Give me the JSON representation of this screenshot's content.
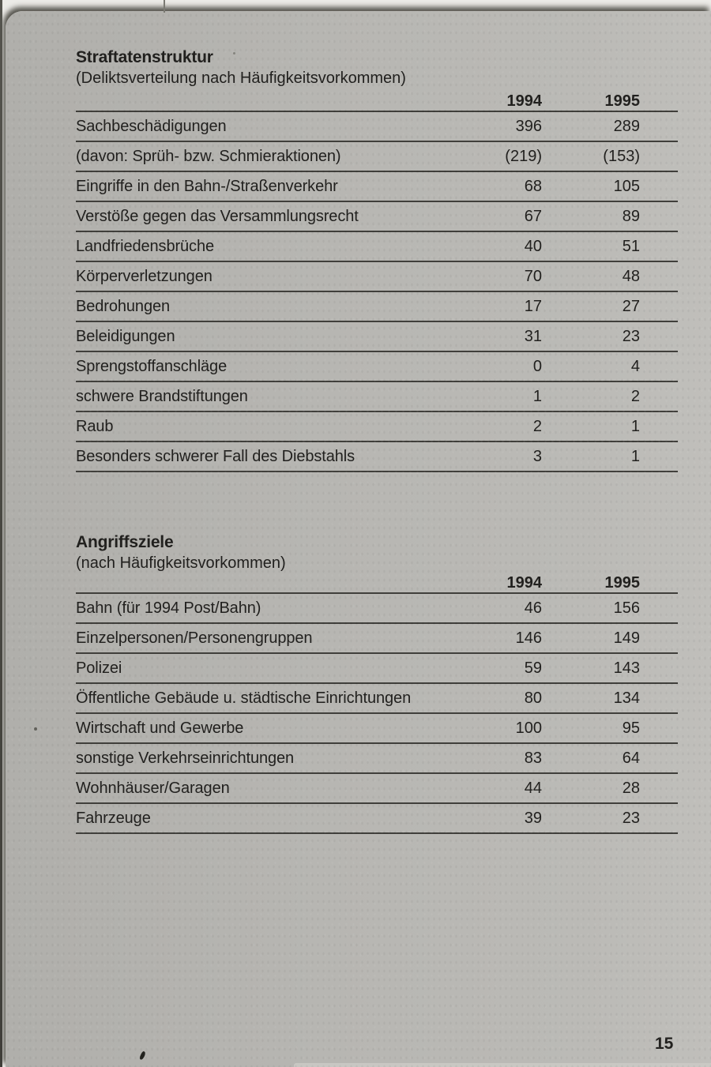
{
  "page": {
    "page_number": "15"
  },
  "tables": [
    {
      "title": "Straftatenstruktur",
      "subtitle": "(Deliktsverteilung nach Häufigkeitsvorkommen)",
      "col_headers": [
        "1994",
        "1995"
      ],
      "rows": [
        {
          "label": "Sachbeschädigungen",
          "v1994": "396",
          "v1995": "289"
        },
        {
          "label": "(davon: Sprüh- bzw. Schmieraktionen)",
          "v1994": "(219)",
          "v1995": "(153)"
        },
        {
          "label": "Eingriffe in den Bahn-/Straßenverkehr",
          "v1994": "68",
          "v1995": "105"
        },
        {
          "label": "Verstöße gegen das Versammlungsrecht",
          "v1994": "67",
          "v1995": "89"
        },
        {
          "label": "Landfriedensbrüche",
          "v1994": "40",
          "v1995": "51"
        },
        {
          "label": "Körperverletzungen",
          "v1994": "70",
          "v1995": "48"
        },
        {
          "label": "Bedrohungen",
          "v1994": "17",
          "v1995": "27"
        },
        {
          "label": "Beleidigungen",
          "v1994": "31",
          "v1995": "23"
        },
        {
          "label": "Sprengstoffanschläge",
          "v1994": "0",
          "v1995": "4"
        },
        {
          "label": "schwere Brandstiftungen",
          "v1994": "1",
          "v1995": "2"
        },
        {
          "label": "Raub",
          "v1994": "2",
          "v1995": "1"
        },
        {
          "label": "Besonders schwerer Fall des Diebstahls",
          "v1994": "3",
          "v1995": "1"
        }
      ]
    },
    {
      "title": "Angriffsziele",
      "subtitle": "(nach Häufigkeitsvorkommen)",
      "col_headers": [
        "1994",
        "1995"
      ],
      "rows": [
        {
          "label": "Bahn (für 1994 Post/Bahn)",
          "v1994": "46",
          "v1995": "156"
        },
        {
          "label": "Einzelpersonen/Personengruppen",
          "v1994": "146",
          "v1995": "149"
        },
        {
          "label": "Polizei",
          "v1994": "59",
          "v1995": "143"
        },
        {
          "label": "Öffentliche Gebäude u. städtische Einrichtungen",
          "v1994": "80",
          "v1995": "134"
        },
        {
          "label": "Wirtschaft und Gewerbe",
          "v1994": "100",
          "v1995": "95"
        },
        {
          "label": "sonstige Verkehrseinrichtungen",
          "v1994": "83",
          "v1995": "64"
        },
        {
          "label": "Wohnhäuser/Garagen",
          "v1994": "44",
          "v1995": "28"
        },
        {
          "label": "Fahrzeuge",
          "v1994": "39",
          "v1995": "23"
        }
      ]
    }
  ],
  "colors": {
    "page_background": "#b7b6b2",
    "scan_background": "#ecebe7",
    "text": "#21201e",
    "rule": "#403f3b"
  }
}
